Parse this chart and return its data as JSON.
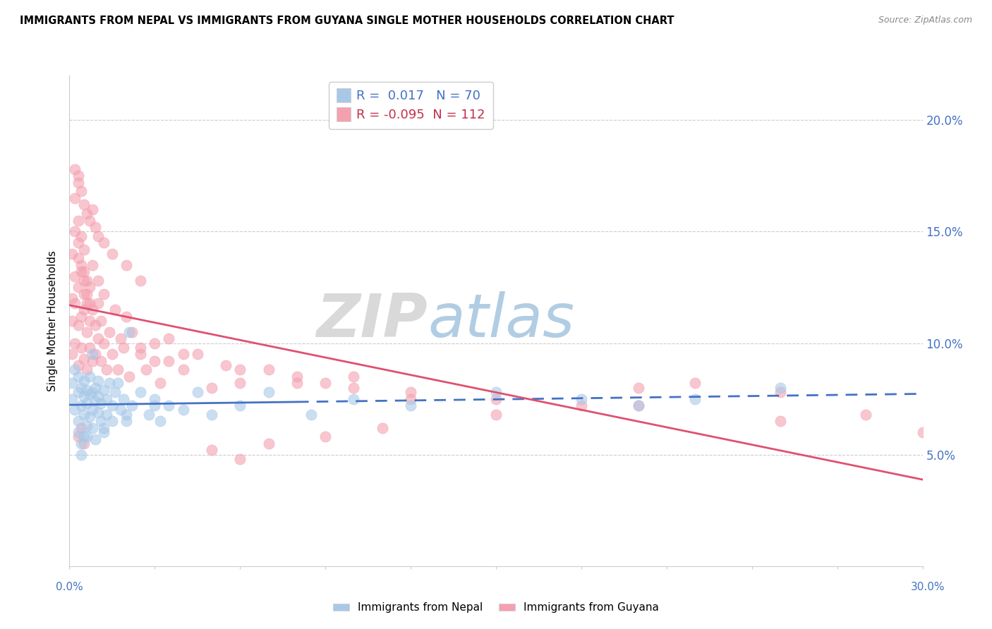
{
  "title": "IMMIGRANTS FROM NEPAL VS IMMIGRANTS FROM GUYANA SINGLE MOTHER HOUSEHOLDS CORRELATION CHART",
  "source": "Source: ZipAtlas.com",
  "ylabel": "Single Mother Households",
  "ytick_values": [
    0.05,
    0.1,
    0.15,
    0.2
  ],
  "xlim": [
    0.0,
    0.3
  ],
  "ylim": [
    0.0,
    0.22
  ],
  "nepal_R": 0.017,
  "nepal_N": 70,
  "guyana_R": -0.095,
  "guyana_N": 112,
  "nepal_color": "#a8c8e8",
  "guyana_color": "#f4a0b0",
  "nepal_line_color": "#4472c4",
  "guyana_line_color": "#e05070",
  "legend_label_nepal": "Immigrants from Nepal",
  "legend_label_guyana": "Immigrants from Guyana",
  "watermark_zip": "ZIP",
  "watermark_atlas": "atlas",
  "nepal_scatter_x": [
    0.001,
    0.001,
    0.002,
    0.002,
    0.003,
    0.003,
    0.003,
    0.003,
    0.004,
    0.004,
    0.004,
    0.005,
    0.005,
    0.005,
    0.005,
    0.006,
    0.006,
    0.006,
    0.007,
    0.007,
    0.007,
    0.008,
    0.008,
    0.008,
    0.009,
    0.009,
    0.009,
    0.01,
    0.01,
    0.01,
    0.011,
    0.011,
    0.012,
    0.012,
    0.013,
    0.013,
    0.014,
    0.015,
    0.015,
    0.016,
    0.017,
    0.018,
    0.019,
    0.02,
    0.021,
    0.022,
    0.025,
    0.028,
    0.03,
    0.032,
    0.035,
    0.04,
    0.045,
    0.05,
    0.06,
    0.07,
    0.085,
    0.1,
    0.12,
    0.15,
    0.18,
    0.2,
    0.22,
    0.25,
    0.004,
    0.006,
    0.008,
    0.012,
    0.02,
    0.03
  ],
  "nepal_scatter_y": [
    0.075,
    0.082,
    0.07,
    0.088,
    0.065,
    0.078,
    0.085,
    0.06,
    0.072,
    0.08,
    0.055,
    0.068,
    0.076,
    0.083,
    0.058,
    0.073,
    0.079,
    0.063,
    0.067,
    0.077,
    0.085,
    0.07,
    0.078,
    0.062,
    0.074,
    0.08,
    0.057,
    0.069,
    0.076,
    0.083,
    0.065,
    0.073,
    0.079,
    0.06,
    0.068,
    0.075,
    0.082,
    0.065,
    0.072,
    0.078,
    0.082,
    0.07,
    0.075,
    0.065,
    0.105,
    0.072,
    0.078,
    0.068,
    0.075,
    0.065,
    0.072,
    0.07,
    0.078,
    0.068,
    0.072,
    0.078,
    0.068,
    0.075,
    0.072,
    0.078,
    0.075,
    0.072,
    0.075,
    0.08,
    0.05,
    0.058,
    0.095,
    0.062,
    0.068,
    0.072
  ],
  "guyana_scatter_x": [
    0.001,
    0.001,
    0.001,
    0.001,
    0.002,
    0.002,
    0.002,
    0.002,
    0.002,
    0.003,
    0.003,
    0.003,
    0.003,
    0.003,
    0.004,
    0.004,
    0.004,
    0.004,
    0.005,
    0.005,
    0.005,
    0.005,
    0.005,
    0.006,
    0.006,
    0.006,
    0.006,
    0.007,
    0.007,
    0.007,
    0.008,
    0.008,
    0.008,
    0.009,
    0.009,
    0.01,
    0.01,
    0.01,
    0.011,
    0.011,
    0.012,
    0.012,
    0.013,
    0.014,
    0.015,
    0.016,
    0.017,
    0.018,
    0.019,
    0.02,
    0.021,
    0.022,
    0.025,
    0.027,
    0.03,
    0.032,
    0.035,
    0.04,
    0.045,
    0.05,
    0.055,
    0.06,
    0.07,
    0.08,
    0.09,
    0.1,
    0.12,
    0.15,
    0.18,
    0.2,
    0.22,
    0.25,
    0.28,
    0.003,
    0.004,
    0.005,
    0.006,
    0.007,
    0.008,
    0.009,
    0.01,
    0.012,
    0.015,
    0.02,
    0.025,
    0.003,
    0.004,
    0.005,
    0.002,
    0.003,
    0.04,
    0.06,
    0.08,
    0.1,
    0.12,
    0.003,
    0.004,
    0.005,
    0.006,
    0.007,
    0.05,
    0.06,
    0.07,
    0.09,
    0.11,
    0.025,
    0.03,
    0.035,
    0.15,
    0.2,
    0.25,
    0.3
  ],
  "guyana_scatter_y": [
    0.12,
    0.095,
    0.14,
    0.11,
    0.13,
    0.15,
    0.1,
    0.165,
    0.118,
    0.145,
    0.108,
    0.125,
    0.09,
    0.155,
    0.135,
    0.112,
    0.098,
    0.148,
    0.122,
    0.142,
    0.093,
    0.115,
    0.132,
    0.105,
    0.128,
    0.088,
    0.118,
    0.11,
    0.098,
    0.125,
    0.115,
    0.092,
    0.135,
    0.108,
    0.095,
    0.118,
    0.102,
    0.128,
    0.092,
    0.11,
    0.1,
    0.122,
    0.088,
    0.105,
    0.095,
    0.115,
    0.088,
    0.102,
    0.098,
    0.112,
    0.085,
    0.105,
    0.095,
    0.088,
    0.1,
    0.082,
    0.092,
    0.088,
    0.095,
    0.08,
    0.09,
    0.082,
    0.088,
    0.085,
    0.082,
    0.085,
    0.078,
    0.075,
    0.072,
    0.08,
    0.082,
    0.078,
    0.068,
    0.175,
    0.168,
    0.162,
    0.158,
    0.155,
    0.16,
    0.152,
    0.148,
    0.145,
    0.14,
    0.135,
    0.128,
    0.058,
    0.062,
    0.055,
    0.178,
    0.172,
    0.095,
    0.088,
    0.082,
    0.08,
    0.075,
    0.138,
    0.132,
    0.128,
    0.122,
    0.118,
    0.052,
    0.048,
    0.055,
    0.058,
    0.062,
    0.098,
    0.092,
    0.102,
    0.068,
    0.072,
    0.065,
    0.06
  ]
}
